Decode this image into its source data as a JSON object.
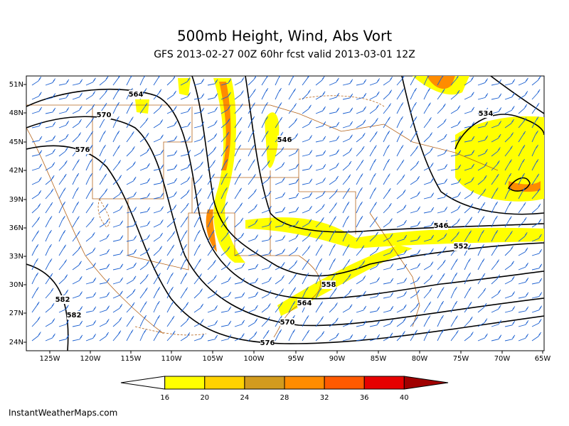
{
  "header": {
    "title": "500mb Height, Wind, Abs Vort",
    "subtitle": "GFS 2013-02-27 00Z 60hr fcst valid 2013-03-01 12Z"
  },
  "map": {
    "lat_labels": [
      "51N",
      "48N",
      "45N",
      "42N",
      "39N",
      "36N",
      "33N",
      "30N",
      "27N",
      "24N"
    ],
    "lon_labels": [
      "125W",
      "120W",
      "115W",
      "110W",
      "105W",
      "100W",
      "95W",
      "90W",
      "85W",
      "80W",
      "75W",
      "70W",
      "65W"
    ],
    "contour_labels": [
      564,
      570,
      576,
      546,
      534,
      546,
      552,
      558,
      564,
      570,
      576,
      582,
      582
    ]
  },
  "colorbar": {
    "ticks": [
      16,
      20,
      24,
      28,
      32,
      36,
      40
    ],
    "colors": [
      "#ffffff",
      "#ffff00",
      "#ffd200",
      "#d29b1e",
      "#ff8c00",
      "#ff5a00",
      "#e60000",
      "#a00000"
    ]
  },
  "footer": {
    "credit": "InstantWeatherMaps.com"
  }
}
